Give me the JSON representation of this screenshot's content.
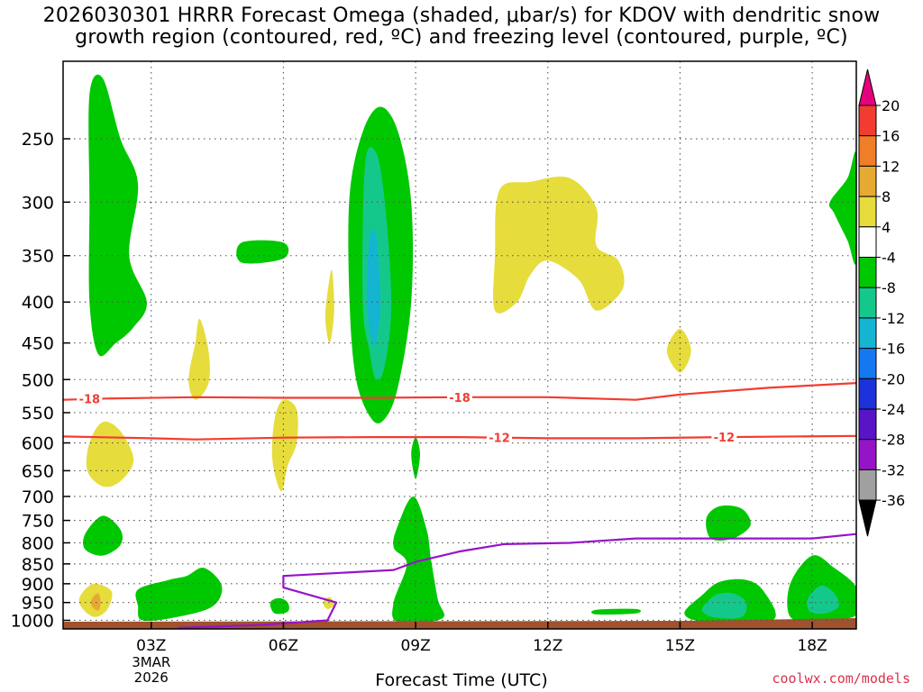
{
  "title": {
    "line1": "2026030301 HRRR Forecast Omega (shaded, μbar/s) for KDOV with dendritic snow",
    "line2": "growth region (contoured, red, ºC) and freezing level (contoured, purple, ºC)"
  },
  "credit": "coolwx.com/models",
  "chart_data": {
    "type": "heatmap",
    "title": "2026030301 HRRR Forecast Omega (shaded, μbar/s) for KDOV with dendritic snow growth region (contoured, red, ºC) and freezing level (contoured, purple, ºC)",
    "xlabel": "Forecast Time (UTC)",
    "ylabel": "",
    "x_hours_range": [
      1,
      19
    ],
    "y_pressure_range_hPa": [
      1025,
      200
    ],
    "y_ticks": [
      250,
      300,
      350,
      400,
      450,
      500,
      550,
      600,
      650,
      700,
      750,
      800,
      850,
      900,
      950,
      1000
    ],
    "x_ticks": [
      {
        "hour": 3,
        "label": "03Z",
        "sub": [
          "3MAR",
          "2026"
        ]
      },
      {
        "hour": 6,
        "label": "06Z",
        "sub": []
      },
      {
        "hour": 9,
        "label": "09Z",
        "sub": []
      },
      {
        "hour": 12,
        "label": "12Z",
        "sub": []
      },
      {
        "hour": 15,
        "label": "15Z",
        "sub": []
      },
      {
        "hour": 18,
        "label": "18Z",
        "sub": []
      }
    ],
    "grid": true,
    "colorbar": {
      "labels": [
        "20",
        "16",
        "12",
        "8",
        "4",
        "-4",
        "-8",
        "-12",
        "-16",
        "-20",
        "-24",
        "-28",
        "-32",
        "-36"
      ],
      "colors": [
        "#e6007e",
        "#f23c32",
        "#f07d28",
        "#e6aa32",
        "#e6dc3c",
        "#ffffff",
        "#00c800",
        "#14c88c",
        "#14b4d2",
        "#1478f0",
        "#1e32dc",
        "#5a14c8",
        "#9614c8",
        "#a0a0a0",
        "#000000"
      ]
    },
    "contours": [
      {
        "name": "-18",
        "color": "#f23c32",
        "points": [
          [
            1.0,
            530
          ],
          [
            2.0,
            528
          ],
          [
            4.0,
            526
          ],
          [
            6.0,
            527
          ],
          [
            8.0,
            527
          ],
          [
            10.0,
            526
          ],
          [
            12.0,
            526
          ],
          [
            14.0,
            530
          ],
          [
            15.0,
            522
          ],
          [
            17.0,
            512
          ],
          [
            19.0,
            505
          ]
        ]
      },
      {
        "name": "-12",
        "color": "#f23c32",
        "points": [
          [
            1.0,
            589
          ],
          [
            3.0,
            592
          ],
          [
            4.0,
            594
          ],
          [
            6.0,
            591
          ],
          [
            8.0,
            590
          ],
          [
            10.0,
            590
          ],
          [
            12.0,
            592
          ],
          [
            14.0,
            592
          ],
          [
            16.0,
            590
          ],
          [
            19.0,
            588
          ]
        ]
      },
      {
        "name": "freezing",
        "color": "#9614c8",
        "points": [
          [
            3.6,
            1022
          ],
          [
            5.5,
            1013
          ],
          [
            7.0,
            1000
          ],
          [
            7.2,
            950
          ],
          [
            6.0,
            910
          ],
          [
            6.0,
            880
          ],
          [
            8.5,
            865
          ],
          [
            9.0,
            845
          ],
          [
            10.0,
            820
          ],
          [
            11.0,
            803
          ],
          [
            12.5,
            800
          ],
          [
            14.0,
            790
          ],
          [
            16.0,
            790
          ],
          [
            18.0,
            790
          ],
          [
            19.0,
            780
          ]
        ]
      }
    ],
    "omega_regions": [
      {
        "level": "-4",
        "color": "#00c800",
        "points": [
          [
            1.6,
            220
          ],
          [
            1.9,
            210
          ],
          [
            2.3,
            250
          ],
          [
            2.7,
            285
          ],
          [
            2.5,
            350
          ],
          [
            2.9,
            400
          ],
          [
            2.6,
            430
          ],
          [
            2.2,
            450
          ],
          [
            1.8,
            465
          ],
          [
            1.6,
            400
          ],
          [
            1.6,
            300
          ]
        ]
      },
      {
        "level": "-4",
        "color": "#00c800",
        "points": [
          [
            5.05,
            337
          ],
          [
            6.0,
            337
          ],
          [
            6.0,
            353
          ],
          [
            5.05,
            357
          ]
        ]
      },
      {
        "level": "-4",
        "color": "#00c800",
        "points": [
          [
            7.5,
            295
          ],
          [
            7.8,
            245
          ],
          [
            8.2,
            228
          ],
          [
            8.6,
            245
          ],
          [
            8.9,
            300
          ],
          [
            8.9,
            400
          ],
          [
            8.6,
            510
          ],
          [
            8.3,
            560
          ],
          [
            8.0,
            560
          ],
          [
            7.65,
            500
          ],
          [
            7.5,
            400
          ]
        ]
      },
      {
        "level": "-8",
        "color": "#14c88c",
        "points": [
          [
            7.85,
            270
          ],
          [
            8.1,
            260
          ],
          [
            8.3,
            300
          ],
          [
            8.45,
            400
          ],
          [
            8.3,
            480
          ],
          [
            8.1,
            500
          ],
          [
            7.95,
            460
          ],
          [
            7.8,
            400
          ]
        ]
      },
      {
        "level": "-12",
        "color": "#14b4d2",
        "points": [
          [
            7.95,
            335
          ],
          [
            8.1,
            330
          ],
          [
            8.2,
            400
          ],
          [
            8.1,
            450
          ],
          [
            8.0,
            445
          ],
          [
            7.9,
            400
          ]
        ]
      },
      {
        "level": "-4",
        "color": "#00c800",
        "points": [
          [
            18.4,
            300
          ],
          [
            18.8,
            280
          ],
          [
            19.0,
            262
          ],
          [
            19.0,
            355
          ],
          [
            18.8,
            335
          ],
          [
            18.5,
            310
          ]
        ]
      },
      {
        "level": "-4",
        "color": "#00c800",
        "points": [
          [
            8.9,
            620
          ],
          [
            9.0,
            590
          ],
          [
            9.1,
            620
          ],
          [
            9.0,
            665
          ]
        ]
      },
      {
        "level": "-4",
        "color": "#00c800",
        "points": [
          [
            8.6,
            760
          ],
          [
            8.95,
            700
          ],
          [
            9.25,
            770
          ],
          [
            9.35,
            840
          ],
          [
            9.5,
            940
          ],
          [
            9.6,
            995
          ],
          [
            8.6,
            1005
          ],
          [
            8.5,
            950
          ],
          [
            8.8,
            850
          ],
          [
            8.5,
            810
          ]
        ]
      },
      {
        "level": "-4",
        "color": "#00c800",
        "points": [
          [
            1.5,
            780
          ],
          [
            1.9,
            740
          ],
          [
            2.3,
            770
          ],
          [
            2.3,
            805
          ],
          [
            1.9,
            830
          ],
          [
            1.5,
            815
          ]
        ]
      },
      {
        "level": "-4",
        "color": "#00c800",
        "points": [
          [
            2.7,
            915
          ],
          [
            3.4,
            890
          ],
          [
            3.8,
            880
          ],
          [
            4.2,
            860
          ],
          [
            4.6,
            905
          ],
          [
            4.4,
            960
          ],
          [
            3.6,
            990
          ],
          [
            2.8,
            1000
          ],
          [
            2.7,
            960
          ]
        ]
      },
      {
        "level": "-4",
        "color": "#00c800",
        "points": [
          [
            5.7,
            950
          ],
          [
            5.9,
            938
          ],
          [
            6.1,
            950
          ],
          [
            6.1,
            975
          ],
          [
            5.8,
            980
          ]
        ]
      },
      {
        "level": "-4",
        "color": "#00c800",
        "points": [
          [
            13.1,
            970
          ],
          [
            14.0,
            968
          ],
          [
            14.0,
            980
          ],
          [
            13.1,
            983
          ]
        ]
      },
      {
        "level": "-4",
        "color": "#00c800",
        "points": [
          [
            15.6,
            745
          ],
          [
            15.9,
            720
          ],
          [
            16.4,
            725
          ],
          [
            16.6,
            760
          ],
          [
            16.2,
            790
          ],
          [
            15.7,
            790
          ]
        ]
      },
      {
        "level": "-4",
        "color": "#00c800",
        "points": [
          [
            15.1,
            980
          ],
          [
            15.5,
            930
          ],
          [
            15.9,
            895
          ],
          [
            16.5,
            890
          ],
          [
            16.9,
            920
          ],
          [
            17.1,
            1000
          ],
          [
            15.6,
            1005
          ]
        ]
      },
      {
        "level": "-8",
        "color": "#14c88c",
        "points": [
          [
            15.5,
            970
          ],
          [
            15.8,
            930
          ],
          [
            16.2,
            925
          ],
          [
            16.5,
            950
          ],
          [
            16.4,
            990
          ],
          [
            15.8,
            992
          ]
        ]
      },
      {
        "level": "-4",
        "color": "#00c800",
        "points": [
          [
            17.5,
            900
          ],
          [
            18.0,
            830
          ],
          [
            18.5,
            860
          ],
          [
            19.0,
            910
          ],
          [
            19.0,
            985
          ],
          [
            18.1,
            1000
          ],
          [
            17.5,
            990
          ]
        ]
      },
      {
        "level": "-8",
        "color": "#14c88c",
        "points": [
          [
            17.9,
            940
          ],
          [
            18.2,
            905
          ],
          [
            18.5,
            925
          ],
          [
            18.6,
            960
          ],
          [
            18.3,
            980
          ],
          [
            17.95,
            975
          ]
        ]
      },
      {
        "level": "4",
        "color": "#e6dc3c",
        "points": [
          [
            10.9,
            290
          ],
          [
            11.6,
            283
          ],
          [
            12.5,
            280
          ],
          [
            13.1,
            305
          ],
          [
            13.1,
            340
          ],
          [
            13.6,
            355
          ],
          [
            13.7,
            385
          ],
          [
            13.1,
            410
          ],
          [
            12.7,
            375
          ],
          [
            12.0,
            355
          ],
          [
            11.6,
            370
          ],
          [
            11.3,
            400
          ],
          [
            10.8,
            410
          ],
          [
            10.8,
            350
          ]
        ]
      },
      {
        "level": "4",
        "color": "#e6dc3c",
        "points": [
          [
            4.0,
            450
          ],
          [
            4.1,
            420
          ],
          [
            4.3,
            460
          ],
          [
            4.3,
            505
          ],
          [
            4.0,
            530
          ],
          [
            3.85,
            500
          ]
        ]
      },
      {
        "level": "4",
        "color": "#e6dc3c",
        "points": [
          [
            7.0,
            390
          ],
          [
            7.1,
            365
          ],
          [
            7.15,
            410
          ],
          [
            7.05,
            450
          ],
          [
            6.95,
            420
          ]
        ]
      },
      {
        "level": "4",
        "color": "#e6dc3c",
        "points": [
          [
            5.8,
            560
          ],
          [
            6.0,
            530
          ],
          [
            6.3,
            545
          ],
          [
            6.3,
            600
          ],
          [
            6.1,
            640
          ],
          [
            5.95,
            690
          ],
          [
            5.75,
            630
          ]
        ]
      },
      {
        "level": "4",
        "color": "#e6dc3c",
        "points": [
          [
            1.6,
            600
          ],
          [
            1.9,
            565
          ],
          [
            2.3,
            580
          ],
          [
            2.6,
            630
          ],
          [
            2.3,
            670
          ],
          [
            1.9,
            680
          ],
          [
            1.55,
            650
          ]
        ]
      },
      {
        "level": "4",
        "color": "#e6dc3c",
        "points": [
          [
            1.4,
            930
          ],
          [
            1.7,
            900
          ],
          [
            2.1,
            920
          ],
          [
            2.0,
            970
          ],
          [
            1.7,
            990
          ],
          [
            1.4,
            960
          ]
        ]
      },
      {
        "level": "8",
        "color": "#e6aa32",
        "points": [
          [
            1.65,
            940
          ],
          [
            1.8,
            925
          ],
          [
            1.85,
            950
          ],
          [
            1.8,
            972
          ],
          [
            1.65,
            960
          ]
        ]
      },
      {
        "level": "4",
        "color": "#e6dc3c",
        "points": [
          [
            6.9,
            950
          ],
          [
            7.05,
            935
          ],
          [
            7.15,
            955
          ],
          [
            7.0,
            968
          ]
        ]
      },
      {
        "level": "4",
        "color": "#e6dc3c",
        "points": [
          [
            14.7,
            460
          ],
          [
            15.0,
            432
          ],
          [
            15.25,
            460
          ],
          [
            15.0,
            490
          ]
        ]
      }
    ]
  }
}
